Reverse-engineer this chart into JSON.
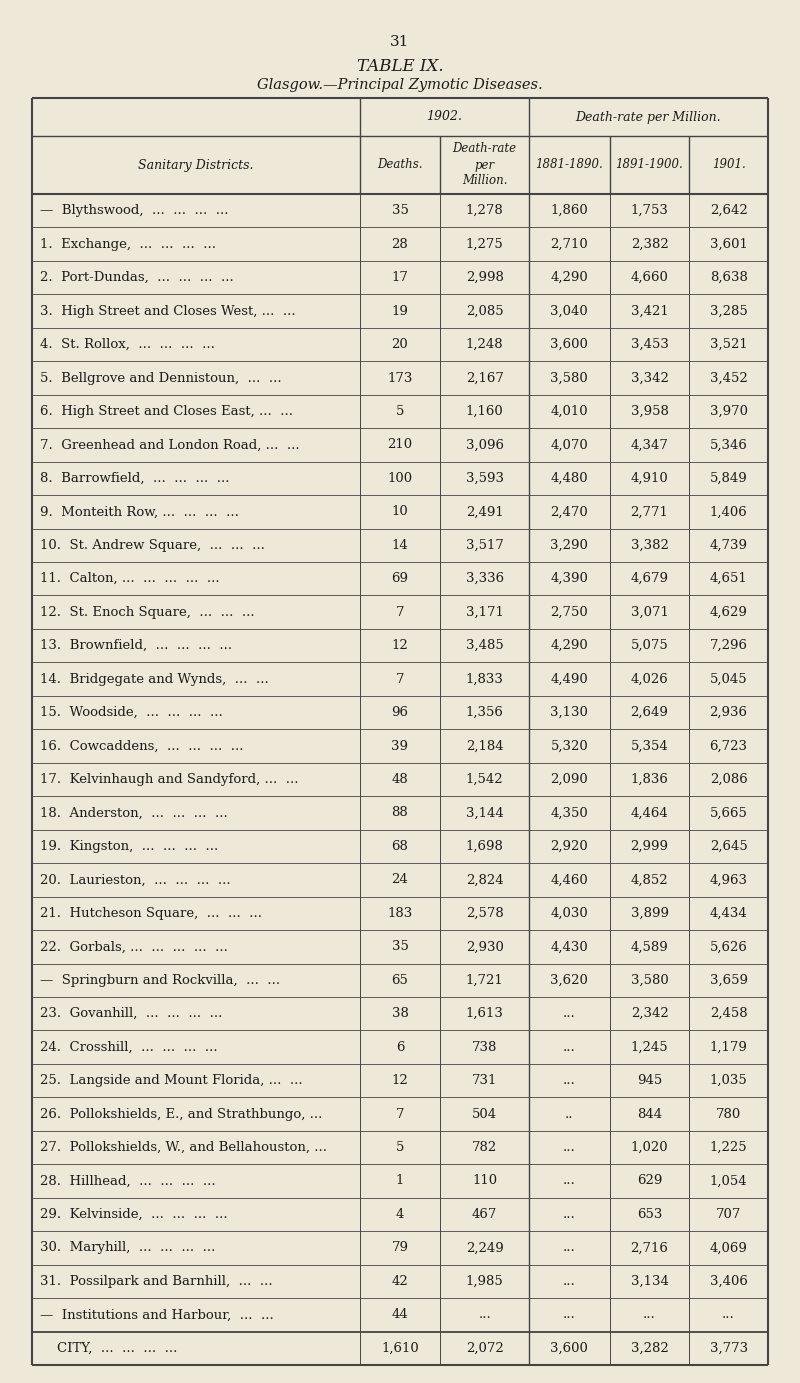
{
  "page_number": "31",
  "title": "TABLE IX.",
  "subtitle": "Glasgow.—Principal Zymotic Diseases.",
  "bg_color": "#ede8d8",
  "rows": [
    [
      "—  Blythswood,  ...  ...  ...  ...",
      "35",
      "1,278",
      "1,860",
      "1,753",
      "2,642"
    ],
    [
      "1.  Exchange,  ...  ...  ...  ...",
      "28",
      "1,275",
      "2,710",
      "2,382",
      "3,601"
    ],
    [
      "2.  Port-Dundas,  ...  ...  ...  ...",
      "17",
      "2,998",
      "4,290",
      "4,660",
      "8,638"
    ],
    [
      "3.  High Street and Closes West, ...  ...",
      "19",
      "2,085",
      "3,040",
      "3,421",
      "3,285"
    ],
    [
      "4.  St. Rollox,  ...  ...  ...  ...",
      "20",
      "1,248",
      "3,600",
      "3,453",
      "3,521"
    ],
    [
      "5.  Bellgrove and Dennistoun,  ...  ...",
      "173",
      "2,167",
      "3,580",
      "3,342",
      "3,452"
    ],
    [
      "6.  High Street and Closes East, ...  ...",
      "5",
      "1,160",
      "4,010",
      "3,958",
      "3,970"
    ],
    [
      "7.  Greenhead and London Road, ...  ...",
      "210",
      "3,096",
      "4,070",
      "4,347",
      "5,346"
    ],
    [
      "8.  Barrowfield,  ...  ...  ...  ...",
      "100",
      "3,593",
      "4,480",
      "4,910",
      "5,849"
    ],
    [
      "9.  Monteith Row, ...  ...  ...  ...",
      "10",
      "2,491",
      "2,470",
      "2,771",
      "1,406"
    ],
    [
      "10.  St. Andrew Square,  ...  ...  ...",
      "14",
      "3,517",
      "3,290",
      "3,382",
      "4,739"
    ],
    [
      "11.  Calton, ...  ...  ...  ...  ...",
      "69",
      "3,336",
      "4,390",
      "4,679",
      "4,651"
    ],
    [
      "12.  St. Enoch Square,  ...  ...  ...",
      "7",
      "3,171",
      "2,750",
      "3,071",
      "4,629"
    ],
    [
      "13.  Brownfield,  ...  ...  ...  ...",
      "12",
      "3,485",
      "4,290",
      "5,075",
      "7,296"
    ],
    [
      "14.  Bridgegate and Wynds,  ...  ...",
      "7",
      "1,833",
      "4,490",
      "4,026",
      "5,045"
    ],
    [
      "15.  Woodside,  ...  ...  ...  ...",
      "96",
      "1,356",
      "3,130",
      "2,649",
      "2,936"
    ],
    [
      "16.  Cowcaddens,  ...  ...  ...  ...",
      "39",
      "2,184",
      "5,320",
      "5,354",
      "6,723"
    ],
    [
      "17.  Kelvinhaugh and Sandyford, ...  ...",
      "48",
      "1,542",
      "2,090",
      "1,836",
      "2,086"
    ],
    [
      "18.  Anderston,  ...  ...  ...  ...",
      "88",
      "3,144",
      "4,350",
      "4,464",
      "5,665"
    ],
    [
      "19.  Kingston,  ...  ...  ...  ...",
      "68",
      "1,698",
      "2,920",
      "2,999",
      "2,645"
    ],
    [
      "20.  Laurieston,  ...  ...  ...  ...",
      "24",
      "2,824",
      "4,460",
      "4,852",
      "4,963"
    ],
    [
      "21.  Hutcheson Square,  ...  ...  ...",
      "183",
      "2,578",
      "4,030",
      "3,899",
      "4,434"
    ],
    [
      "22.  Gorbals, ...  ...  ...  ...  ...",
      "35",
      "2,930",
      "4,430",
      "4,589",
      "5,626"
    ],
    [
      "—  Springburn and Rockvilla,  ...  ...",
      "65",
      "1,721",
      "3,620",
      "3,580",
      "3,659"
    ],
    [
      "23.  Govanhill,  ...  ...  ...  ...",
      "38",
      "1,613",
      "...",
      "2,342",
      "2,458"
    ],
    [
      "24.  Crosshill,  ...  ...  ...  ...",
      "6",
      "738",
      "...",
      "1,245",
      "1,179"
    ],
    [
      "25.  Langside and Mount Florida, ...  ...",
      "12",
      "731",
      "...",
      "945",
      "1,035"
    ],
    [
      "26.  Pollokshields, E., and Strathbungo, ...",
      "7",
      "504",
      "..",
      "844",
      "780"
    ],
    [
      "27.  Pollokshields, W., and Bellahouston, ...",
      "5",
      "782",
      "...",
      "1,020",
      "1,225"
    ],
    [
      "28.  Hillhead,  ...  ...  ...  ...",
      "1",
      "110",
      "...",
      "629",
      "1,054"
    ],
    [
      "29.  Kelvinside,  ...  ...  ...  ...",
      "4",
      "467",
      "...",
      "653",
      "707"
    ],
    [
      "30.  Maryhill,  ...  ...  ...  ...",
      "79",
      "2,249",
      "...",
      "2,716",
      "4,069"
    ],
    [
      "31.  Possilpark and Barnhill,  ...  ...",
      "42",
      "1,985",
      "...",
      "3,134",
      "3,406"
    ],
    [
      "—  Institutions and Harbour,  ...  ...",
      "44",
      "...",
      "...",
      "...",
      "..."
    ],
    [
      "    CITY,  ...  ...  ...  ...",
      "1,610",
      "2,072",
      "3,600",
      "3,282",
      "3,773"
    ]
  ],
  "text_color": "#1c1c1c",
  "line_color": "#444444",
  "font_size": 9.5,
  "header_font_size": 9.0,
  "small_font_size": 8.5
}
